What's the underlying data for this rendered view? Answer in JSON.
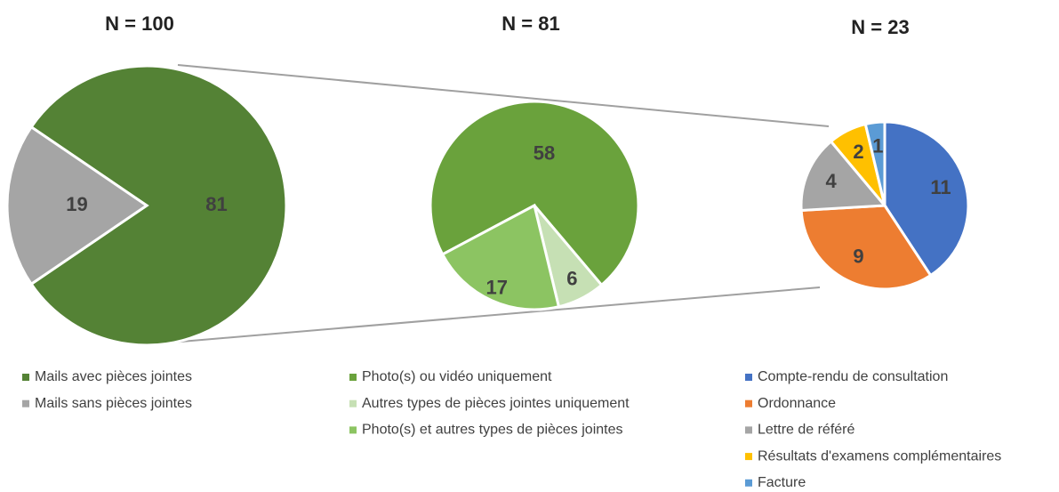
{
  "chart_data": [
    {
      "type": "pie",
      "title": "N = 100",
      "categories": [
        "Mails avec pièces jointes",
        "Mails sans pièces jointes"
      ],
      "values": [
        81,
        19
      ],
      "colors": [
        "#548235",
        "#a5a5a5"
      ]
    },
    {
      "type": "pie",
      "title": "N = 81",
      "categories": [
        "Photo(s) ou vidéo uniquement",
        "Autres types de pièces jointes uniquement",
        "Photo(s) et autres types de pièces jointes"
      ],
      "values": [
        58,
        6,
        17
      ],
      "colors": [
        "#6aa23c",
        "#c6e0b4",
        "#8cc462"
      ]
    },
    {
      "type": "pie",
      "title": "N = 23",
      "categories": [
        "Compte-rendu de consultation",
        "Ordonnance",
        "Lettre de référé",
        "Résultats d'examens complémentaires",
        "Facture"
      ],
      "values": [
        11,
        9,
        4,
        2,
        1
      ],
      "colors": [
        "#4472c4",
        "#ed7d31",
        "#a5a5a5",
        "#ffc000",
        "#5b9bd5"
      ]
    }
  ]
}
